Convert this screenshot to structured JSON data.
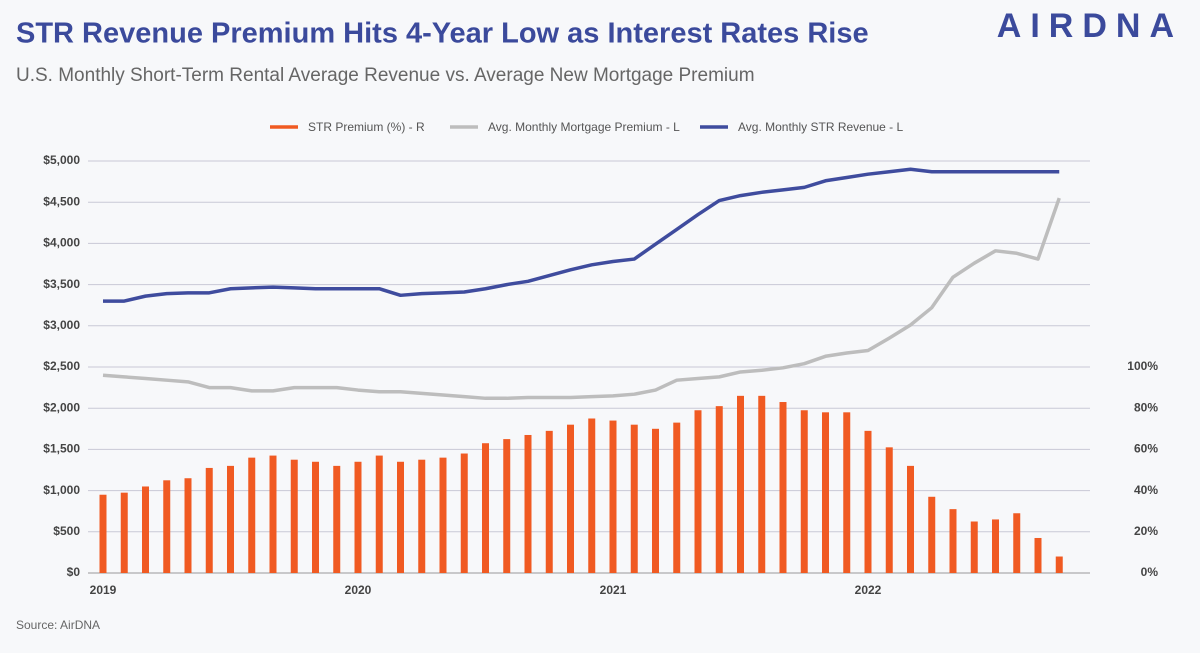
{
  "chart_data": {
    "type": "bar",
    "title": "STR Revenue Premium Hits 4-Year Low as Interest Rates Rise",
    "subtitle": "U.S. Monthly Short-Term Rental Average Revenue vs. Average New Mortgage Premium",
    "brand": "AIRDNA",
    "source": "Source: AirDNA",
    "categories": [
      "2019",
      null,
      null,
      null,
      null,
      null,
      null,
      null,
      null,
      null,
      null,
      null,
      "2020",
      null,
      null,
      null,
      null,
      null,
      null,
      null,
      null,
      null,
      null,
      null,
      "2021",
      null,
      null,
      null,
      null,
      null,
      null,
      null,
      null,
      null,
      null,
      null,
      "2022",
      null,
      null,
      null,
      null,
      null,
      null,
      null,
      null,
      null
    ],
    "series": [
      {
        "name": "STR Premium (%) - R",
        "type": "bar",
        "axis": "y2",
        "color": "#f05a22",
        "values": [
          38,
          39,
          42,
          45,
          46,
          51,
          52,
          56,
          57,
          55,
          54,
          52,
          54,
          57,
          54,
          55,
          56,
          58,
          63,
          65,
          67,
          69,
          72,
          75,
          74,
          72,
          70,
          73,
          79,
          81,
          86,
          86,
          83,
          79,
          78,
          78,
          69,
          61,
          52,
          37,
          31,
          25,
          26,
          29,
          17,
          8
        ]
      },
      {
        "name": "Avg. Monthly Mortgage Premium - L",
        "type": "line",
        "color": "#bdbdbd",
        "values": [
          2400,
          2380,
          2360,
          2340,
          2320,
          2250,
          2250,
          2210,
          2210,
          2250,
          2250,
          2250,
          2220,
          2200,
          2200,
          2180,
          2160,
          2140,
          2120,
          2120,
          2130,
          2130,
          2130,
          2140,
          2150,
          2170,
          2220,
          2340,
          2360,
          2380,
          2440,
          2460,
          2490,
          2540,
          2630,
          2670,
          2700,
          2850,
          3010,
          3220,
          3590,
          3760,
          3910,
          3880,
          3810,
          4550
        ]
      },
      {
        "name": "Avg. Monthly STR Revenue - L",
        "type": "line",
        "color": "#3f4c9e",
        "values": [
          3300,
          3300,
          3360,
          3390,
          3400,
          3400,
          3450,
          3460,
          3470,
          3460,
          3450,
          3450,
          3450,
          3450,
          3370,
          3390,
          3400,
          3410,
          3450,
          3500,
          3540,
          3610,
          3680,
          3740,
          3780,
          3810,
          3990,
          4170,
          4350,
          4520,
          4580,
          4620,
          4650,
          4680,
          4760,
          4800,
          4840,
          4870,
          4900,
          4870,
          4870,
          4870,
          4870,
          4870,
          4870,
          4870
        ]
      }
    ],
    "ylim": [
      0,
      5000
    ],
    "yticks": [
      {
        "value": 0,
        "label": "$0"
      },
      {
        "value": 500,
        "label": "$500"
      },
      {
        "value": 1000,
        "label": "$1,000"
      },
      {
        "value": 1500,
        "label": "$1,500"
      },
      {
        "value": 2000,
        "label": "$2,000"
      },
      {
        "value": 2500,
        "label": "$2,500"
      },
      {
        "value": 3000,
        "label": "$3,000"
      },
      {
        "value": 3500,
        "label": "$3,500"
      },
      {
        "value": 4000,
        "label": "$4,000"
      },
      {
        "value": 4500,
        "label": "$4,500"
      },
      {
        "value": 5000,
        "label": "$5,000"
      }
    ],
    "y2lim": [
      0,
      200
    ],
    "y2ticks": [
      {
        "value": 0,
        "label": "0%"
      },
      {
        "value": 20,
        "label": "20%"
      },
      {
        "value": 40,
        "label": "40%"
      },
      {
        "value": 60,
        "label": "60%"
      },
      {
        "value": 80,
        "label": "80%"
      },
      {
        "value": 100,
        "label": "100%"
      }
    ],
    "grid": true,
    "legend": "top"
  }
}
